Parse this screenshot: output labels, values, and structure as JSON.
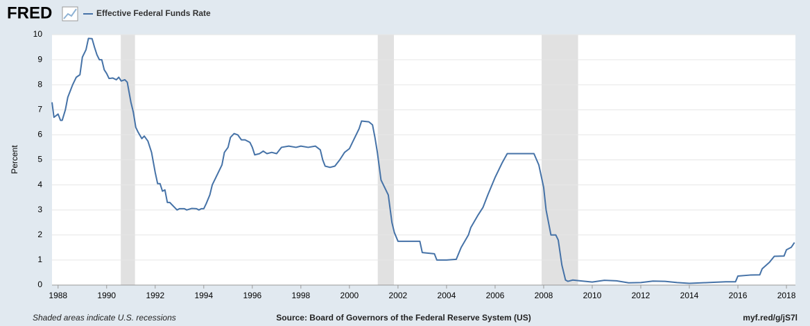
{
  "logo": "FRED",
  "chart_data": {
    "type": "line",
    "y_label": "Percent",
    "xlim": [
      1987.75,
      2018.37
    ],
    "xticks": [
      1988,
      1990,
      1992,
      1994,
      1996,
      1998,
      2000,
      2002,
      2004,
      2006,
      2008,
      2010,
      2012,
      2014,
      2016,
      2018
    ],
    "ylim": [
      0,
      10
    ],
    "yticks": [
      0,
      1,
      2,
      3,
      4,
      5,
      6,
      7,
      8,
      9,
      10
    ],
    "grid": true,
    "recessions": [
      [
        1990.583,
        1991.167
      ],
      [
        2001.167,
        2001.833
      ],
      [
        2007.917,
        2009.417
      ]
    ],
    "recession_color": "#e1e1e1",
    "x": [
      1987.75,
      1987.83,
      1988.0,
      1988.1,
      1988.17,
      1988.3,
      1988.4,
      1988.6,
      1988.75,
      1988.9,
      1989.0,
      1989.15,
      1989.25,
      1989.4,
      1989.5,
      1989.6,
      1989.7,
      1989.8,
      1989.9,
      1990.0,
      1990.1,
      1990.25,
      1990.4,
      1990.5,
      1990.6,
      1990.75,
      1990.85,
      1991.0,
      1991.1,
      1991.2,
      1991.3,
      1991.45,
      1991.55,
      1991.7,
      1991.85,
      1992.0,
      1992.1,
      1992.2,
      1992.3,
      1992.4,
      1992.5,
      1992.6,
      1992.75,
      1992.9,
      1993.0,
      1993.2,
      1993.3,
      1993.5,
      1993.7,
      1993.8,
      1993.9,
      1994.0,
      1994.1,
      1994.25,
      1994.35,
      1994.5,
      1994.6,
      1994.75,
      1994.85,
      1995.0,
      1995.1,
      1995.25,
      1995.4,
      1995.55,
      1995.7,
      1995.9,
      1996.0,
      1996.1,
      1996.3,
      1996.45,
      1996.6,
      1996.8,
      1997.0,
      1997.2,
      1997.5,
      1997.8,
      1998.0,
      1998.3,
      1998.6,
      1998.8,
      1998.9,
      1999.0,
      1999.2,
      1999.4,
      1999.6,
      1999.8,
      2000.0,
      2000.2,
      2000.4,
      2000.5,
      2000.8,
      2000.95,
      2001.05,
      2001.15,
      2001.3,
      2001.5,
      2001.6,
      2001.75,
      2001.85,
      2002.0,
      2002.5,
      2002.9,
      2003.0,
      2003.5,
      2003.6,
      2004.0,
      2004.4,
      2004.6,
      2004.9,
      2005.0,
      2005.3,
      2005.5,
      2005.7,
      2006.0,
      2006.3,
      2006.5,
      2007.0,
      2007.6,
      2007.8,
      2008.0,
      2008.1,
      2008.3,
      2008.5,
      2008.6,
      2008.75,
      2008.9,
      2009.0,
      2009.2,
      2009.5,
      2010.0,
      2010.5,
      2011.0,
      2011.5,
      2012.0,
      2012.5,
      2013.0,
      2013.5,
      2014.0,
      2014.5,
      2015.0,
      2015.5,
      2015.9,
      2016.0,
      2016.5,
      2016.9,
      2017.0,
      2017.3,
      2017.5,
      2017.9,
      2018.0,
      2018.2,
      2018.33
    ],
    "series": [
      {
        "name": "Effective Federal Funds Rate",
        "color": "#4572a7",
        "values": [
          7.3,
          6.7,
          6.83,
          6.58,
          6.58,
          7.0,
          7.5,
          8.0,
          8.3,
          8.4,
          9.1,
          9.4,
          9.85,
          9.84,
          9.5,
          9.2,
          9.0,
          9.0,
          8.6,
          8.45,
          8.25,
          8.27,
          8.2,
          8.3,
          8.15,
          8.2,
          8.1,
          7.3,
          6.9,
          6.3,
          6.1,
          5.85,
          5.95,
          5.75,
          5.3,
          4.5,
          4.05,
          4.05,
          3.75,
          3.8,
          3.3,
          3.3,
          3.15,
          3.0,
          3.05,
          3.05,
          3.0,
          3.06,
          3.05,
          3.0,
          3.05,
          3.05,
          3.25,
          3.6,
          4.0,
          4.3,
          4.5,
          4.8,
          5.3,
          5.5,
          5.9,
          6.05,
          6.0,
          5.8,
          5.8,
          5.7,
          5.5,
          5.2,
          5.25,
          5.35,
          5.25,
          5.3,
          5.25,
          5.5,
          5.55,
          5.5,
          5.55,
          5.5,
          5.55,
          5.4,
          5.0,
          4.75,
          4.7,
          4.75,
          5.0,
          5.3,
          5.45,
          5.85,
          6.25,
          6.55,
          6.52,
          6.4,
          5.9,
          5.3,
          4.2,
          3.8,
          3.6,
          2.5,
          2.1,
          1.75,
          1.75,
          1.75,
          1.3,
          1.25,
          1.0,
          1.0,
          1.03,
          1.5,
          2.0,
          2.3,
          2.8,
          3.1,
          3.6,
          4.3,
          4.9,
          5.25,
          5.25,
          5.25,
          4.8,
          3.9,
          3.0,
          2.0,
          2.0,
          1.8,
          0.8,
          0.2,
          0.15,
          0.2,
          0.17,
          0.12,
          0.19,
          0.17,
          0.09,
          0.1,
          0.16,
          0.15,
          0.1,
          0.07,
          0.09,
          0.11,
          0.13,
          0.13,
          0.36,
          0.4,
          0.41,
          0.65,
          0.91,
          1.15,
          1.16,
          1.41,
          1.51,
          1.7
        ]
      }
    ]
  },
  "footer": {
    "left": "Shaded areas indicate U.S. recessions",
    "center": "Source: Board of Governors of the Federal Reserve System (US)",
    "right": "myf.red/g/jS7l"
  }
}
